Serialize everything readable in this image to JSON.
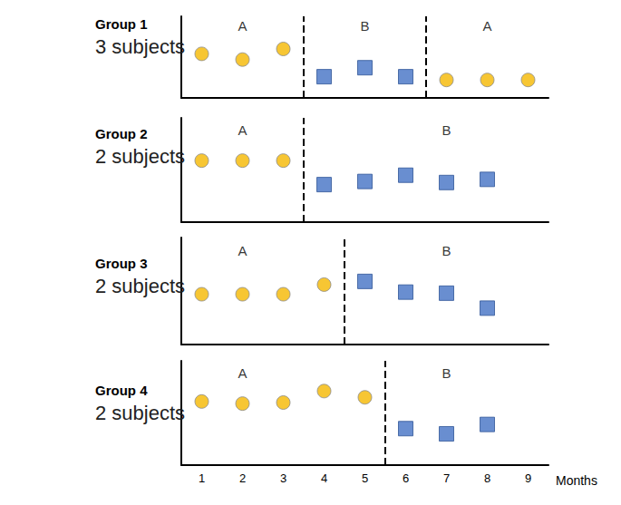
{
  "chart_data": [
    {
      "type": "scatter",
      "title": "Group 1",
      "subtitle": "3 subjects",
      "xlim": [
        0.5,
        9.5
      ],
      "ylim": [
        0,
        10
      ],
      "tick_labels": false,
      "phase_lines": [
        3.5,
        6.5
      ],
      "phase_labels": [
        {
          "text": "A",
          "x": 2
        },
        {
          "text": "B",
          "x": 5
        },
        {
          "text": "A",
          "x": 8
        }
      ],
      "series": [
        {
          "color": "#f5b800",
          "marker": "circle",
          "x": [
            1,
            2,
            3
          ],
          "values": [
            5.4,
            4.7,
            6.0
          ]
        },
        {
          "color": "#4472c4",
          "marker": "square",
          "x": [
            4,
            5,
            6
          ],
          "values": [
            2.6,
            3.7,
            2.6
          ]
        },
        {
          "color": "#f5b800",
          "marker": "circle",
          "x": [
            7,
            8,
            9
          ],
          "values": [
            2.2,
            2.2,
            2.2
          ]
        }
      ]
    },
    {
      "type": "scatter",
      "title": "Group 2",
      "subtitle": "2 subjects",
      "xlim": [
        0.5,
        9.5
      ],
      "ylim": [
        0,
        10
      ],
      "tick_labels": false,
      "phase_lines": [
        3.5
      ],
      "phase_labels": [
        {
          "text": "A",
          "x": 2
        },
        {
          "text": "B",
          "x": 7
        }
      ],
      "series": [
        {
          "color": "#f5b800",
          "marker": "circle",
          "x": [
            1,
            2,
            3
          ],
          "values": [
            5.9,
            5.9,
            5.9
          ]
        },
        {
          "color": "#4472c4",
          "marker": "square",
          "x": [
            4,
            5,
            6,
            7,
            8
          ],
          "values": [
            3.6,
            3.9,
            4.5,
            3.8,
            4.1
          ]
        }
      ]
    },
    {
      "type": "scatter",
      "title": "Group 3",
      "subtitle": "2 subjects",
      "xlim": [
        0.5,
        9.5
      ],
      "ylim": [
        0,
        10
      ],
      "tick_labels": false,
      "phase_lines": [
        4.5
      ],
      "phase_labels": [
        {
          "text": "A",
          "x": 2
        },
        {
          "text": "B",
          "x": 7
        }
      ],
      "series": [
        {
          "color": "#f5b800",
          "marker": "circle",
          "x": [
            1,
            2,
            3,
            4
          ],
          "values": [
            4.7,
            4.7,
            4.7,
            5.6
          ]
        },
        {
          "color": "#4472c4",
          "marker": "square",
          "x": [
            5,
            6,
            7,
            8
          ],
          "values": [
            5.9,
            4.9,
            4.8,
            3.4
          ]
        }
      ]
    },
    {
      "type": "scatter",
      "title": "Group 4",
      "subtitle": "2 subjects",
      "xlim": [
        0.5,
        9.5
      ],
      "ylim": [
        0,
        10
      ],
      "tick_labels": "x",
      "xticks": [
        1,
        2,
        3,
        4,
        5,
        6,
        7,
        8,
        9
      ],
      "xlabel": "Months",
      "phase_lines": [
        5.5
      ],
      "phase_labels": [
        {
          "text": "A",
          "x": 2
        },
        {
          "text": "B",
          "x": 7
        }
      ],
      "series": [
        {
          "color": "#f5b800",
          "marker": "circle",
          "x": [
            1,
            2,
            3,
            4,
            5
          ],
          "values": [
            6.1,
            5.9,
            6.0,
            7.1,
            6.5
          ]
        },
        {
          "color": "#4472c4",
          "marker": "square",
          "x": [
            6,
            7,
            8
          ],
          "values": [
            3.5,
            3.0,
            3.9
          ]
        }
      ]
    }
  ]
}
